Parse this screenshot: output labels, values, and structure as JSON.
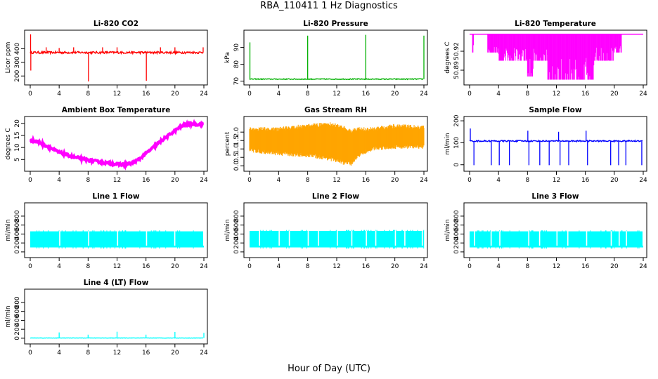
{
  "figure": {
    "title": "RBA_110411  1 Hz Diagnostics",
    "xlabel": "Hour of Day (UTC)"
  },
  "chart_data": [
    {
      "id": "co2",
      "type": "line",
      "title": "Li-820 CO2",
      "ylabel": "Licor ppm",
      "color": "#ff0000",
      "x_ticks": [
        0,
        4,
        8,
        12,
        16,
        20,
        24
      ],
      "y_ticks": [
        200,
        300,
        400
      ],
      "xlim": [
        0,
        24
      ],
      "ylim": [
        150,
        520
      ],
      "base": 372,
      "noise": 8,
      "spikes": [
        {
          "x": 0.05,
          "y": 505
        },
        {
          "x": 0.08,
          "y": 240
        },
        {
          "x": 2.2,
          "y": 410
        },
        {
          "x": 4.0,
          "y": 405
        },
        {
          "x": 6.0,
          "y": 410
        },
        {
          "x": 8.05,
          "y": 160
        },
        {
          "x": 10.0,
          "y": 410
        },
        {
          "x": 12.0,
          "y": 410
        },
        {
          "x": 16.05,
          "y": 165
        },
        {
          "x": 18.0,
          "y": 410
        },
        {
          "x": 20.0,
          "y": 410
        },
        {
          "x": 23.9,
          "y": 410
        }
      ]
    },
    {
      "id": "pressure",
      "type": "line",
      "title": "Li-820 Pressure",
      "ylabel": "kPa",
      "color": "#00b000",
      "x_ticks": [
        0,
        4,
        8,
        12,
        16,
        20,
        24
      ],
      "y_ticks": [
        70,
        80,
        90
      ],
      "xlim": [
        0,
        24
      ],
      "ylim": [
        69,
        99
      ],
      "base": 71.2,
      "noise": 0.25,
      "spikes": [
        {
          "x": 0.05,
          "y": 93
        },
        {
          "x": 8.0,
          "y": 97
        },
        {
          "x": 16.0,
          "y": 97.5
        },
        {
          "x": 24.0,
          "y": 97
        }
      ]
    },
    {
      "id": "li820temp",
      "type": "band",
      "title": "Li-820 Temperature",
      "ylabel": "degrees C",
      "color": "#ff00ff",
      "x_ticks": [
        0,
        4,
        8,
        12,
        16,
        20,
        24
      ],
      "y_ticks": [
        50.89,
        50.92
      ],
      "xlim": [
        0,
        24
      ],
      "ylim": [
        50.87,
        50.95
      ],
      "top": 50.947,
      "segments": [
        {
          "x0": 0.4,
          "x1": 0.6,
          "low": 50.918
        },
        {
          "x0": 2.5,
          "x1": 4.0,
          "low": 50.918
        },
        {
          "x0": 4.0,
          "x1": 8.0,
          "low": 50.905
        },
        {
          "x0": 8.0,
          "x1": 8.8,
          "low": 50.88
        },
        {
          "x0": 8.8,
          "x1": 10.8,
          "low": 50.905
        },
        {
          "x0": 10.8,
          "x1": 17.2,
          "low": 50.875
        },
        {
          "x0": 17.2,
          "x1": 20.0,
          "low": 50.905
        },
        {
          "x0": 20.0,
          "x1": 21.0,
          "low": 50.918
        }
      ]
    },
    {
      "id": "ambient",
      "type": "line",
      "title": "Ambient Box Temperature",
      "ylabel": "degrees C",
      "color": "#ff00ff",
      "x_ticks": [
        0,
        4,
        8,
        12,
        16,
        20,
        24
      ],
      "y_ticks": [
        5,
        10,
        15,
        20
      ],
      "xlim": [
        0,
        24
      ],
      "ylim": [
        1,
        22
      ],
      "noise": 0.5,
      "curve": [
        [
          0,
          13
        ],
        [
          1,
          12.5
        ],
        [
          2,
          11
        ],
        [
          3,
          9.5
        ],
        [
          4,
          8
        ],
        [
          6,
          6
        ],
        [
          8,
          4.8
        ],
        [
          10,
          3.8
        ],
        [
          12,
          3
        ],
        [
          13,
          2.9
        ],
        [
          14,
          3.4
        ],
        [
          15,
          5
        ],
        [
          16,
          7.5
        ],
        [
          18,
          12.5
        ],
        [
          20,
          17
        ],
        [
          21,
          19
        ],
        [
          22,
          19.8
        ],
        [
          24,
          19.5
        ]
      ]
    },
    {
      "id": "rh",
      "type": "band",
      "title": "Gas Stream RH",
      "ylabel": "percent",
      "color": "#ffa500",
      "x_ticks": [
        0,
        4,
        8,
        12,
        16,
        20,
        24
      ],
      "y_ticks": [
        0.0,
        0.5,
        1.0,
        1.5,
        2.0
      ],
      "xlim": [
        0,
        24
      ],
      "ylim": [
        -0.2,
        2.8
      ],
      "envelope": [
        [
          0,
          0.8,
          2.3
        ],
        [
          4,
          0.6,
          2.3
        ],
        [
          8,
          0.5,
          2.5
        ],
        [
          11,
          0.3,
          2.6
        ],
        [
          13,
          0.05,
          2.4
        ],
        [
          14,
          0.0,
          2.2
        ],
        [
          15,
          0.5,
          2.3
        ],
        [
          17,
          0.9,
          2.3
        ],
        [
          20,
          1.0,
          2.5
        ],
        [
          24,
          1.0,
          2.4
        ]
      ]
    },
    {
      "id": "sampleflow",
      "type": "line",
      "title": "Sample Flow",
      "ylabel": "ml/min",
      "color": "#0000ff",
      "x_ticks": [
        0,
        4,
        8,
        12,
        16,
        20,
        24
      ],
      "y_ticks": [
        0,
        100,
        200
      ],
      "xlim": [
        0,
        24
      ],
      "ylim": [
        -20,
        210
      ],
      "base": 108,
      "noise": 3,
      "spikes": [
        {
          "x": 0.1,
          "y": 165
        },
        {
          "x": 0.6,
          "y": -2
        },
        {
          "x": 3.0,
          "y": -2
        },
        {
          "x": 4.1,
          "y": -2
        },
        {
          "x": 5.5,
          "y": -2
        },
        {
          "x": 8.05,
          "y": 155
        },
        {
          "x": 8.2,
          "y": -2
        },
        {
          "x": 9.7,
          "y": -2
        },
        {
          "x": 11.0,
          "y": -2
        },
        {
          "x": 12.3,
          "y": 150
        },
        {
          "x": 12.5,
          "y": -2
        },
        {
          "x": 13.7,
          "y": -2
        },
        {
          "x": 16.1,
          "y": 155
        },
        {
          "x": 16.3,
          "y": -2
        },
        {
          "x": 19.5,
          "y": -2
        },
        {
          "x": 20.6,
          "y": -2
        },
        {
          "x": 21.6,
          "y": -2
        },
        {
          "x": 23.8,
          "y": -2
        }
      ]
    },
    {
      "id": "line1",
      "type": "band",
      "title": "Line 1 Flow",
      "ylabel": "ml/min",
      "color": "#00ffff",
      "x_ticks": [
        0,
        4,
        8,
        12,
        16,
        20,
        24
      ],
      "y_ticks": [
        0,
        200,
        400,
        600,
        800
      ],
      "xlim": [
        0,
        24
      ],
      "ylim": [
        -80,
        1050
      ],
      "low": 100,
      "high": 460,
      "gaps": [
        4.0,
        8.0,
        12.0,
        16.0,
        19.9,
        23.9
      ]
    },
    {
      "id": "line2",
      "type": "band",
      "title": "Line 2 Flow",
      "ylabel": "ml/min",
      "color": "#00ffff",
      "x_ticks": [
        0,
        4,
        8,
        12,
        16,
        20,
        24
      ],
      "y_ticks": [
        0,
        200,
        400,
        600,
        800
      ],
      "xlim": [
        0,
        24
      ],
      "ylim": [
        -80,
        1050
      ],
      "low": 100,
      "high": 470,
      "gaps": [
        1.3,
        4.0,
        5.4,
        8.0,
        9.4,
        12.0,
        14.0,
        16.0,
        17.3,
        20.0,
        21.3,
        23.7
      ]
    },
    {
      "id": "line3",
      "type": "band",
      "title": "Line 3 Flow",
      "ylabel": "ml/min",
      "color": "#00ffff",
      "x_ticks": [
        0,
        4,
        8,
        12,
        16,
        20,
        24
      ],
      "y_ticks": [
        0,
        200,
        400,
        600,
        800
      ],
      "xlim": [
        0,
        24
      ],
      "ylim": [
        -80,
        1050
      ],
      "low": 100,
      "high": 460,
      "gaps": [
        0.6,
        2.9,
        4.1,
        8.1,
        9.6,
        12.0,
        13.5,
        16.1,
        19.5,
        20.6,
        21.6,
        23.9
      ]
    },
    {
      "id": "line4",
      "type": "line",
      "title": "Line 4 (LT) Flow",
      "ylabel": "ml/min",
      "color": "#00ffff",
      "x_ticks": [
        0,
        4,
        8,
        12,
        16,
        20,
        24
      ],
      "y_ticks": [
        0,
        200,
        400,
        600,
        800
      ],
      "xlim": [
        0,
        24
      ],
      "ylim": [
        -80,
        1050
      ],
      "base": 5,
      "noise": 4,
      "spikes": [
        {
          "x": 4.0,
          "y": 130
        },
        {
          "x": 8.0,
          "y": 80
        },
        {
          "x": 12.0,
          "y": 145
        },
        {
          "x": 16.0,
          "y": 80
        },
        {
          "x": 20.0,
          "y": 140
        },
        {
          "x": 24.0,
          "y": 120
        }
      ]
    }
  ]
}
